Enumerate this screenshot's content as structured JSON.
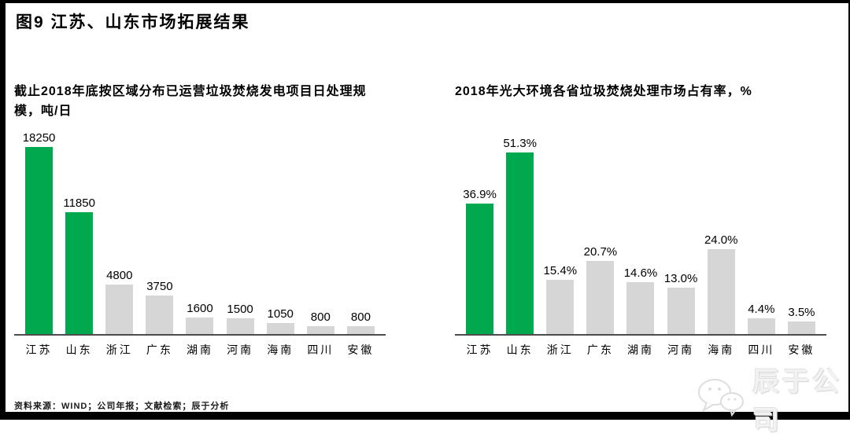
{
  "page": {
    "title": "图9 江苏、山东市场拓展结果",
    "source_note": "资料来源：WIND；公司年报；文献检索；辰于分析",
    "watermark": {
      "company_name": "辰于公司",
      "icon": "wechat-icon"
    }
  },
  "colors": {
    "highlight_green": "#00A84E",
    "bar_default_gray": "#D6D6D6",
    "axis": "#4D4D4D",
    "frame": "#000000",
    "watermark_gray": "#F2F2F2"
  },
  "chart_data": [
    {
      "type": "bar",
      "title": "截止2018年底按区域分布已运营垃圾焚烧发电项目日处理规模，吨/日",
      "categories": [
        "江苏",
        "山东",
        "浙江",
        "广东",
        "湖南",
        "河南",
        "海南",
        "四川",
        "安徽"
      ],
      "values": [
        18250,
        11850,
        4800,
        3750,
        1600,
        1500,
        1050,
        800,
        800
      ],
      "value_labels": [
        "18250",
        "11850",
        "4800",
        "3750",
        "1600",
        "1500",
        "1050",
        "800",
        "800"
      ],
      "highlighted": [
        true,
        true,
        false,
        false,
        false,
        false,
        false,
        false,
        false
      ],
      "xlabel": "",
      "ylabel": "吨/日",
      "ylim": [
        0,
        19000
      ],
      "grid": false,
      "legend": "none"
    },
    {
      "type": "bar",
      "title": "2018年光大环境各省垃圾焚烧处理市场占有率，%",
      "categories": [
        "江苏",
        "山东",
        "浙江",
        "广东",
        "湖南",
        "河南",
        "海南",
        "四川",
        "安徽"
      ],
      "values": [
        36.9,
        51.3,
        15.4,
        20.7,
        14.6,
        13.0,
        24.0,
        4.4,
        3.5
      ],
      "value_labels": [
        "36.9%",
        "51.3%",
        "15.4%",
        "20.7%",
        "14.6%",
        "13.0%",
        "24.0%",
        "4.4%",
        "3.5%"
      ],
      "highlighted": [
        true,
        true,
        false,
        false,
        false,
        false,
        false,
        false,
        false
      ],
      "xlabel": "",
      "ylabel": "%",
      "ylim": [
        0,
        55
      ],
      "grid": false,
      "legend": "none"
    }
  ]
}
